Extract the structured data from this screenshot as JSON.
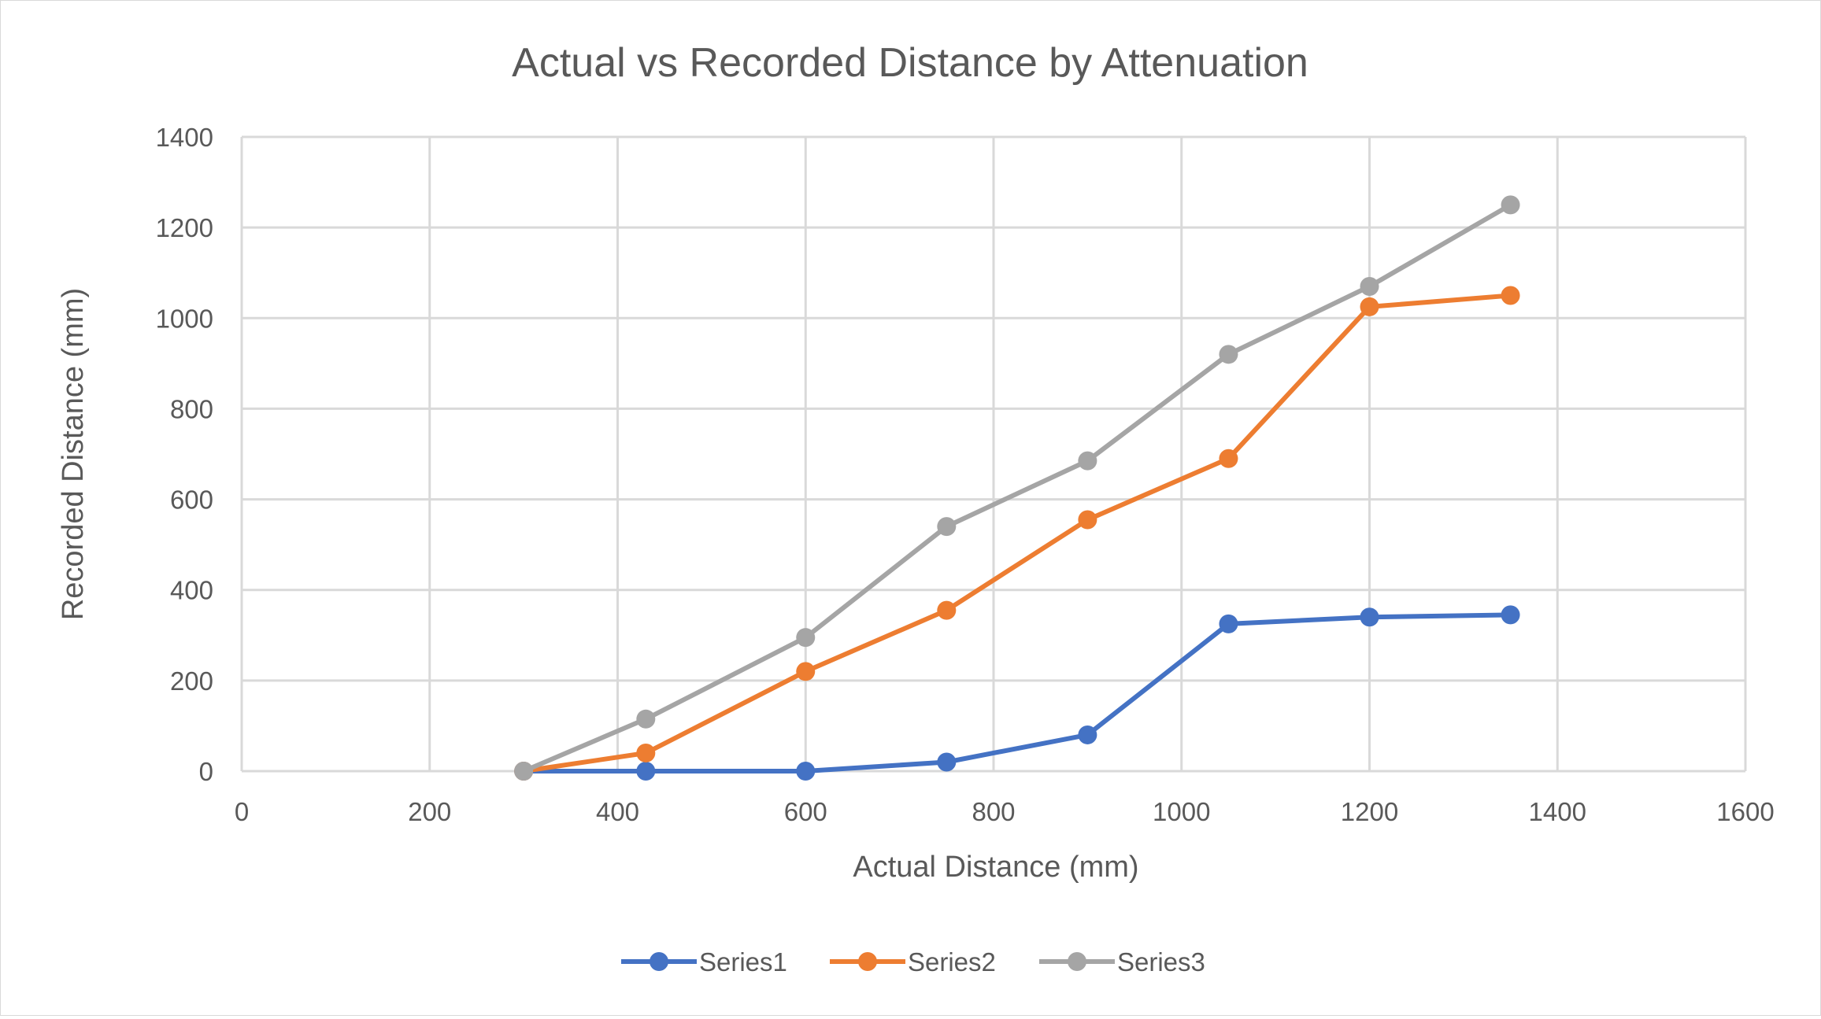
{
  "chart_data": {
    "type": "scatter",
    "title": "Actual vs Recorded Distance by Attenuation",
    "xlabel": "Actual Distance (mm)",
    "ylabel": "Recorded Distance (mm)",
    "xlim": [
      0,
      1600
    ],
    "ylim": [
      0,
      1400
    ],
    "x_ticks": [
      0,
      200,
      400,
      600,
      800,
      1000,
      1200,
      1400,
      1600
    ],
    "y_ticks": [
      0,
      200,
      400,
      600,
      800,
      1000,
      1200,
      1400
    ],
    "x_tick_labels": [
      "0",
      "200",
      "400",
      "600",
      "800",
      "1000",
      "1200",
      "1400",
      "1600"
    ],
    "y_tick_labels": [
      "0",
      "200",
      "400",
      "600",
      "800",
      "1000",
      "1200",
      "1400"
    ],
    "grid": true,
    "legend_position": "bottom",
    "lines_with_markers": true,
    "x": [
      300,
      430,
      600,
      750,
      900,
      1050,
      1200,
      1350
    ],
    "series": [
      {
        "name": "Series1",
        "color": "#4472c4",
        "values": [
          0,
          0,
          0,
          20,
          80,
          325,
          340,
          345
        ]
      },
      {
        "name": "Series2",
        "color": "#ed7d31",
        "values": [
          0,
          40,
          220,
          355,
          555,
          690,
          1025,
          1050
        ]
      },
      {
        "name": "Series3",
        "color": "#a5a5a5",
        "values": [
          0,
          115,
          295,
          540,
          685,
          920,
          1070,
          1250
        ]
      }
    ]
  }
}
